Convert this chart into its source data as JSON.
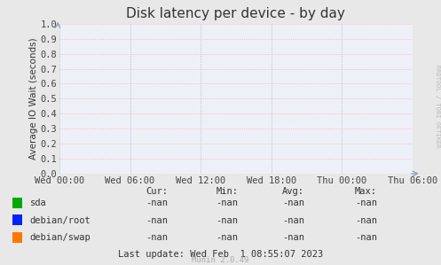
{
  "title": "Disk latency per device - by day",
  "ylabel": "Average IO Wait (seconds)",
  "bg_color": "#e8e8e8",
  "plot_bg_color": "#eef0f8",
  "grid_color_h": "#ffaaaa",
  "grid_color_v": "#aaaacc",
  "ylim": [
    0.0,
    1.0
  ],
  "yticks": [
    0.0,
    0.1,
    0.2,
    0.3,
    0.4,
    0.5,
    0.6,
    0.7,
    0.8,
    0.9,
    1.0
  ],
  "xtick_labels": [
    "Wed 00:00",
    "Wed 06:00",
    "Wed 12:00",
    "Wed 18:00",
    "Thu 00:00",
    "Thu 06:00"
  ],
  "legend_items": [
    {
      "label": "sda",
      "color": "#00aa00"
    },
    {
      "label": "debian/root",
      "color": "#0022ff"
    },
    {
      "label": "debian/swap",
      "color": "#ff7700"
    }
  ],
  "table_headers": [
    "Cur:",
    "Min:",
    "Avg:",
    "Max:"
  ],
  "table_values": [
    [
      "-nan",
      "-nan",
      "-nan",
      "-nan"
    ],
    [
      "-nan",
      "-nan",
      "-nan",
      "-nan"
    ],
    [
      "-nan",
      "-nan",
      "-nan",
      "-nan"
    ]
  ],
  "last_update": "Last update: Wed Feb  1 08:55:07 2023",
  "munin_version": "Munin 2.0.49",
  "watermark": "RRDTOOL / TOBI OETIKER",
  "title_fontsize": 11,
  "axis_fontsize": 7.5,
  "table_fontsize": 7.5,
  "watermark_fontsize": 5
}
